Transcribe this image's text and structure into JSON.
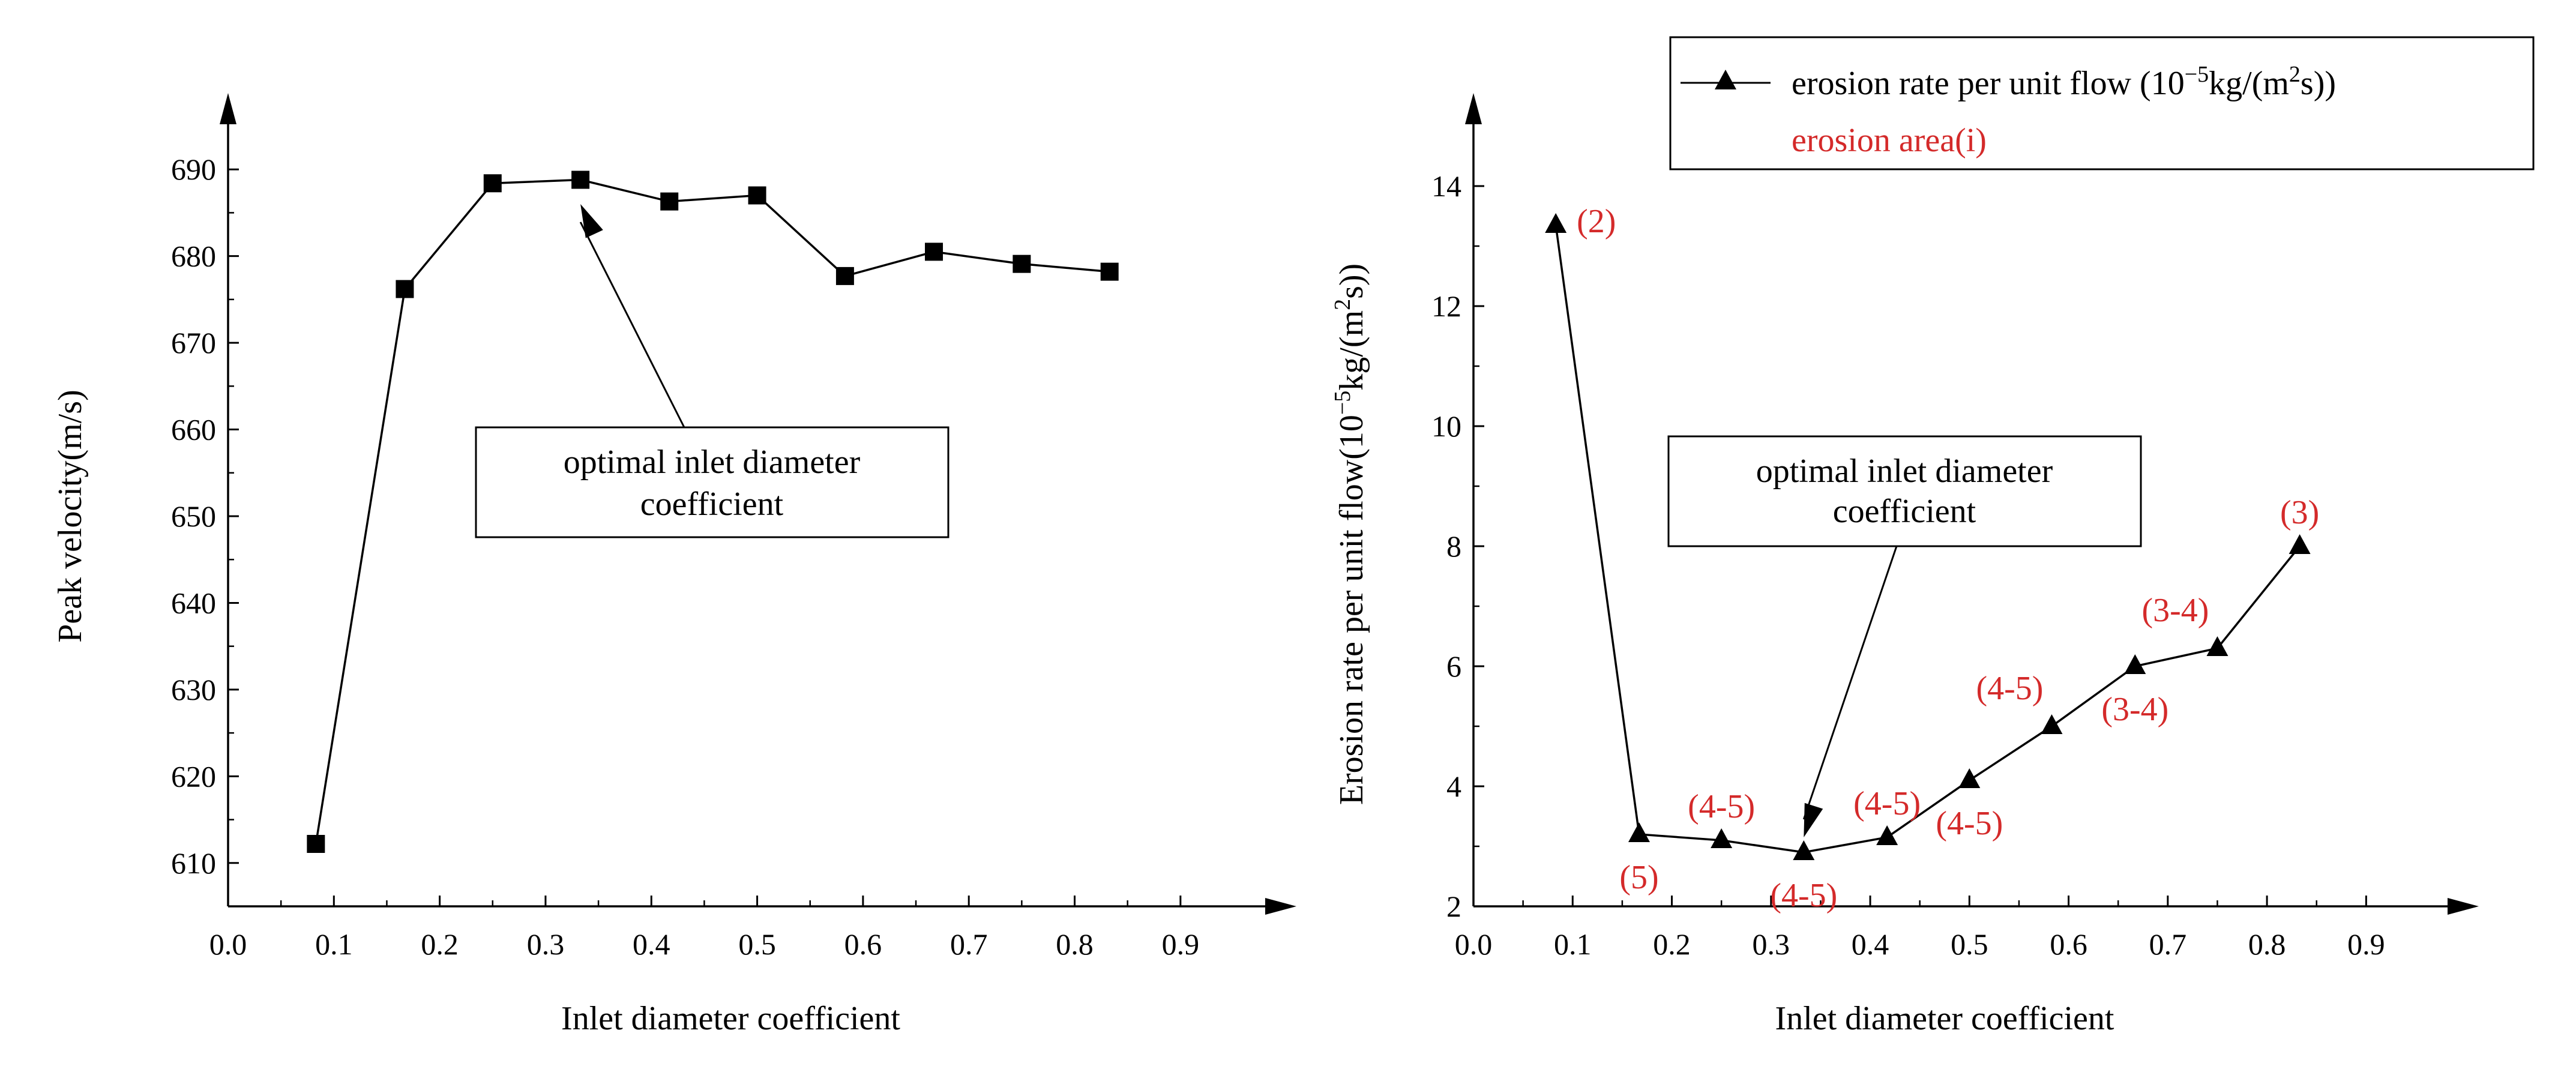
{
  "colors": {
    "ink": "#000000",
    "annotation_red": "#d42a2a",
    "background": "#ffffff"
  },
  "chart_data": [
    {
      "id": "left",
      "type": "line",
      "title": "",
      "xlabel": "Inlet diameter coefficient",
      "ylabel": "Peak velocity(m/s)",
      "xlim": [
        0.0,
        0.95
      ],
      "ylim": [
        605,
        695
      ],
      "xticks": [
        "0.0",
        "0.1",
        "0.2",
        "0.3",
        "0.4",
        "0.5",
        "0.6",
        "0.7",
        "0.8",
        "0.9"
      ],
      "yticks": [
        "610",
        "620",
        "630",
        "640",
        "650",
        "660",
        "670",
        "680",
        "690"
      ],
      "marker": "square",
      "series": [
        {
          "name": "Peak velocity",
          "x": [
            0.083,
            0.167,
            0.25,
            0.333,
            0.417,
            0.5,
            0.583,
            0.667,
            0.75,
            0.833
          ],
          "y": [
            612.2,
            676.2,
            688.4,
            688.8,
            686.3,
            687.0,
            677.7,
            680.5,
            679.1,
            678.2
          ]
        }
      ],
      "annotation": {
        "text_lines": [
          "optimal inlet diameter",
          "coefficient"
        ],
        "arrow_target": [
          0.333,
          686.0
        ]
      }
    },
    {
      "id": "right",
      "type": "line",
      "title": "",
      "xlabel": "Inlet diameter coefficient",
      "ylabel": {
        "pre": "Erosion rate per unit flow(10",
        "sup1": "−5",
        "mid": "kg/(m",
        "sup2": "2",
        "post": "s))"
      },
      "xlim": [
        0.0,
        0.95
      ],
      "ylim": [
        2,
        15
      ],
      "xticks": [
        "0.0",
        "0.1",
        "0.2",
        "0.3",
        "0.4",
        "0.5",
        "0.6",
        "0.7",
        "0.8",
        "0.9"
      ],
      "yticks": [
        "2",
        "4",
        "6",
        "8",
        "10",
        "12",
        "14"
      ],
      "marker": "triangle",
      "legend": {
        "position": "top-right",
        "series_label": {
          "pre": "erosion rate per unit flow (10",
          "sup1": "−5",
          "mid": "kg/(m",
          "sup2": "2",
          "post": "s))"
        },
        "red_label": "erosion area(i)"
      },
      "series": [
        {
          "name": "erosion rate per unit flow",
          "x": [
            0.083,
            0.167,
            0.25,
            0.333,
            0.417,
            0.5,
            0.583,
            0.667,
            0.75,
            0.833
          ],
          "y": [
            13.35,
            3.2,
            3.1,
            2.9,
            3.15,
            4.1,
            5.0,
            6.0,
            6.3,
            8.0
          ]
        }
      ],
      "point_labels": [
        {
          "text": "(2)",
          "x": 0.083,
          "y": 13.35,
          "placement": "right"
        },
        {
          "text": "(5)",
          "x": 0.167,
          "y": 3.2,
          "placement": "below"
        },
        {
          "text": "(4-5)",
          "x": 0.25,
          "y": 3.1,
          "placement": "above"
        },
        {
          "text": "(4-5)",
          "x": 0.333,
          "y": 2.9,
          "placement": "below"
        },
        {
          "text": "(4-5)",
          "x": 0.417,
          "y": 3.15,
          "placement": "above"
        },
        {
          "text": "(4-5)",
          "x": 0.5,
          "y": 4.1,
          "placement": "below"
        },
        {
          "text": "(4-5)",
          "x": 0.583,
          "y": 5.0,
          "placement": "above-left"
        },
        {
          "text": "(3-4)",
          "x": 0.667,
          "y": 6.0,
          "placement": "below"
        },
        {
          "text": "(3-4)",
          "x": 0.75,
          "y": 6.3,
          "placement": "above-left"
        },
        {
          "text": "(3)",
          "x": 0.833,
          "y": 8.0,
          "placement": "above"
        }
      ],
      "annotation": {
        "text_lines": [
          "optimal inlet diameter",
          "coefficient"
        ],
        "arrow_target": [
          0.333,
          3.15
        ]
      }
    }
  ]
}
